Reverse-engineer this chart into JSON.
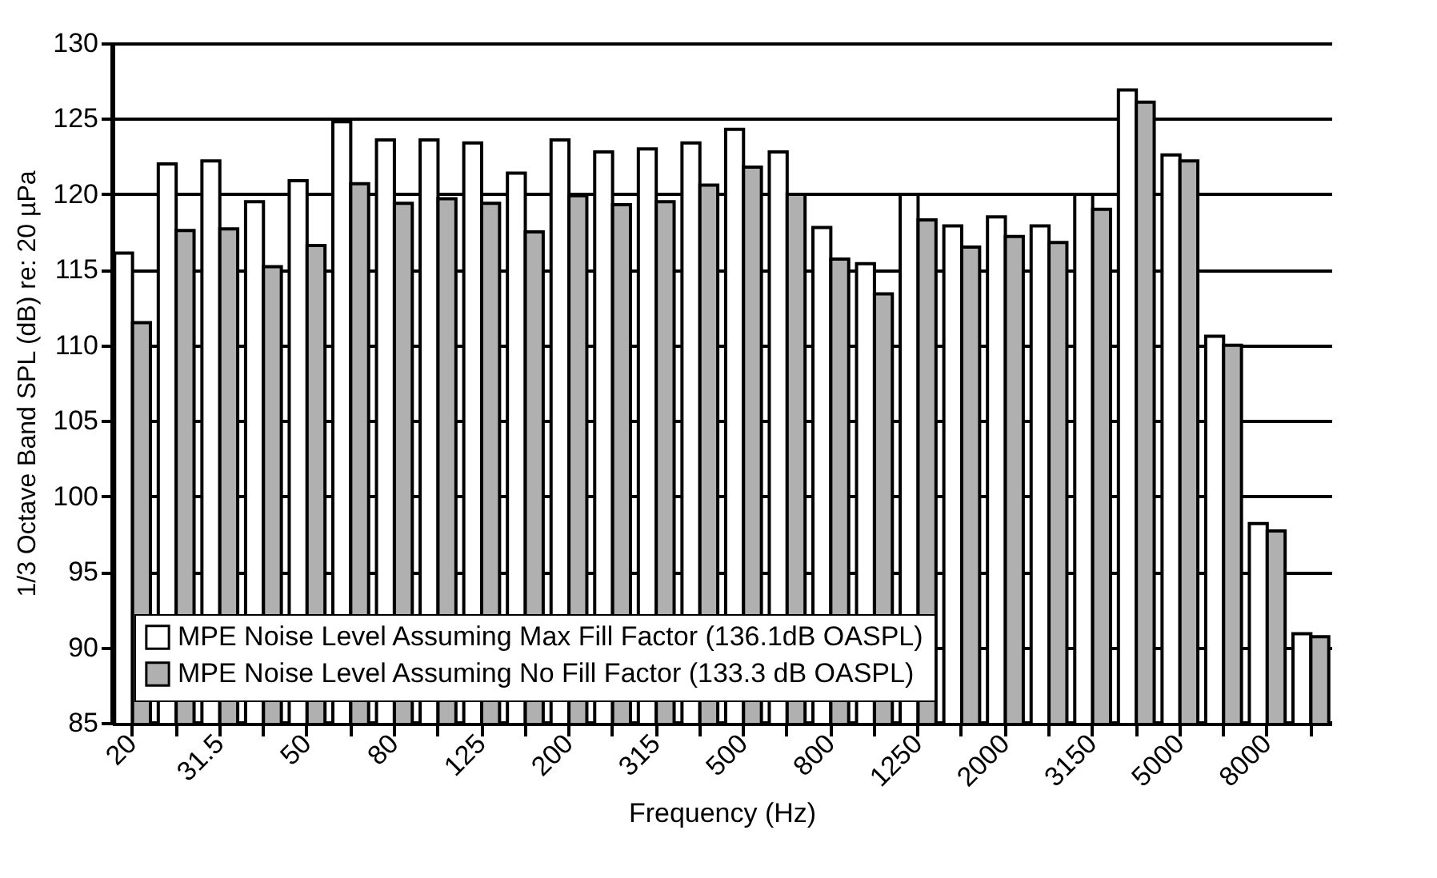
{
  "chart_data": {
    "type": "bar",
    "xlabel": "Frequency (Hz)",
    "ylabel": "1/3 Octave Band SPL (dB) re: 20 µPa",
    "categories": [
      "20",
      null,
      "31.5",
      null,
      "50",
      null,
      "80",
      null,
      "125",
      null,
      "200",
      null,
      "315",
      null,
      "500",
      null,
      "800",
      null,
      "1250",
      null,
      "2000",
      null,
      "3150",
      null,
      "5000",
      null,
      "8000",
      null
    ],
    "series": [
      {
        "name": "MPE Noise Level Assuming Max Fill Factor (136.1dB OASPL)",
        "color": "#ffffff",
        "values": [
          116.1,
          122.0,
          122.2,
          119.5,
          120.9,
          124.8,
          123.6,
          123.6,
          123.4,
          121.4,
          123.6,
          122.8,
          123.0,
          123.4,
          124.3,
          122.8,
          117.8,
          115.4,
          120.0,
          117.9,
          118.5,
          117.9,
          120.0,
          126.9,
          122.6,
          110.6,
          98.2,
          90.9
        ]
      },
      {
        "name": "MPE Noise Level Assuming No Fill Factor (133.3 dB OASPL)",
        "color": "#b0b0b0",
        "values": [
          111.5,
          117.6,
          117.7,
          115.2,
          116.6,
          120.7,
          119.4,
          119.7,
          119.4,
          117.5,
          119.9,
          119.3,
          119.5,
          120.6,
          121.8,
          120.0,
          115.7,
          113.4,
          118.3,
          116.5,
          117.2,
          116.8,
          119.0,
          126.1,
          122.2,
          110.0,
          97.7,
          90.7
        ]
      }
    ],
    "ylim": [
      85,
      130
    ],
    "yticks": [
      85,
      90,
      95,
      100,
      105,
      110,
      115,
      120,
      125,
      130
    ],
    "grid": "y",
    "legend": "bottom"
  }
}
